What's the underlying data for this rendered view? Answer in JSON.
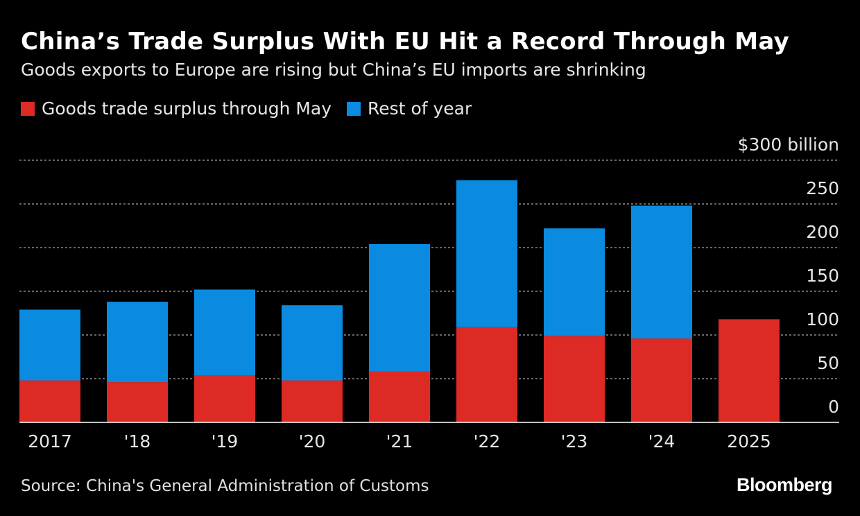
{
  "chart_data": {
    "type": "bar",
    "stacked": true,
    "title": "China’s Trade Surplus With EU Hit a Record Through May",
    "subtitle": "Goods exports to Europe are rising but China’s EU imports are shrinking",
    "categories": [
      "2017",
      "'18",
      "'19",
      "'20",
      "'21",
      "'22",
      "'23",
      "'24",
      "2025"
    ],
    "series": [
      {
        "name": "Goods trade surplus through May",
        "color": "#dd2a25",
        "values": [
          48,
          46,
          54,
          48,
          58,
          109,
          99,
          96,
          118
        ]
      },
      {
        "name": "Rest of year",
        "color": "#0a8be0",
        "values": [
          81,
          92,
          98,
          86,
          146,
          168,
          123,
          152,
          null
        ]
      }
    ],
    "yaxis": {
      "ticks": [
        0,
        50,
        100,
        150,
        200,
        250,
        300
      ],
      "top_label": "$300 billion",
      "ylim": [
        0,
        300
      ],
      "position": "right"
    },
    "grid": true,
    "legend": "top-left"
  },
  "source": "Source: China's General Administration of Customs",
  "logo": "Bloomberg"
}
